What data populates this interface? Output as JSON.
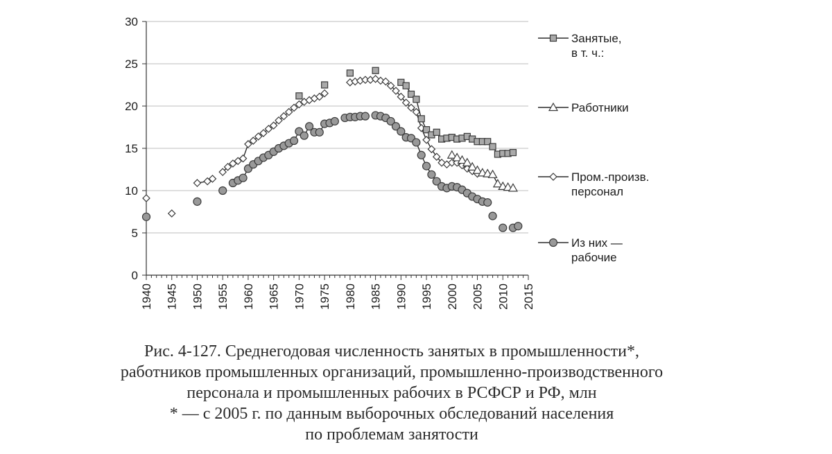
{
  "chart_data": {
    "type": "line",
    "x_range": [
      1940,
      2015
    ],
    "x_tick_step": 5,
    "ylim": [
      0,
      30
    ],
    "y_ticks": [
      0,
      5,
      10,
      15,
      20,
      25,
      30
    ],
    "x_ticks": [
      1940,
      1945,
      1950,
      1955,
      1960,
      1965,
      1970,
      1975,
      1980,
      1985,
      1990,
      1995,
      2000,
      2005,
      2010,
      2015
    ],
    "grid": "horizontal",
    "legend_position": "right",
    "series": [
      {
        "name_lines": [
          "Занятые,",
          "в т. ч.:"
        ],
        "marker": "square",
        "color": "#aaaaaa",
        "segments": [
          [
            [
              1970,
              21.2
            ]
          ],
          [
            [
              1975,
              22.5
            ]
          ],
          [
            [
              1980,
              23.9
            ]
          ],
          [
            [
              1985,
              24.2
            ]
          ],
          [
            [
              1990,
              22.8
            ],
            [
              1991,
              22.4
            ],
            [
              1992,
              21.4
            ],
            [
              1993,
              20.8
            ],
            [
              1994,
              18.5
            ],
            [
              1995,
              17.2
            ],
            [
              1996,
              16.6
            ],
            [
              1997,
              16.9
            ],
            [
              1998,
              16.1
            ],
            [
              1999,
              16.2
            ],
            [
              2000,
              16.3
            ],
            [
              2001,
              16.1
            ],
            [
              2002,
              16.2
            ],
            [
              2003,
              16.4
            ],
            [
              2004,
              16.1
            ],
            [
              2005,
              15.8
            ],
            [
              2006,
              15.8
            ],
            [
              2007,
              15.8
            ],
            [
              2008,
              15.2
            ],
            [
              2009,
              14.3
            ],
            [
              2010,
              14.4
            ],
            [
              2011,
              14.4
            ],
            [
              2012,
              14.5
            ]
          ]
        ]
      },
      {
        "name_lines": [
          "Работники"
        ],
        "marker": "triangle",
        "color": "#ffffff",
        "segments": [
          [
            [
              2000,
              14.2
            ],
            [
              2001,
              13.9
            ],
            [
              2002,
              13.6
            ],
            [
              2003,
              13.3
            ],
            [
              2004,
              12.8
            ],
            [
              2005,
              12.4
            ],
            [
              2006,
              12.1
            ],
            [
              2007,
              12.0
            ],
            [
              2008,
              11.9
            ],
            [
              2009,
              10.8
            ],
            [
              2010,
              10.5
            ],
            [
              2011,
              10.4
            ],
            [
              2012,
              10.3
            ]
          ]
        ]
      },
      {
        "name_lines": [
          "Пром.-произв.",
          "персонал"
        ],
        "marker": "diamond",
        "color": "#ffffff",
        "segments": [
          [
            [
              1940,
              9.1
            ]
          ],
          [
            [
              1945,
              7.3
            ]
          ],
          [
            [
              1950,
              10.9
            ],
            [
              1952,
              11.1
            ],
            [
              1953,
              11.4
            ]
          ],
          [
            [
              1955,
              12.2
            ],
            [
              1956,
              12.8
            ],
            [
              1957,
              13.2
            ],
            [
              1958,
              13.5
            ],
            [
              1959,
              13.8
            ],
            [
              1960,
              15.5
            ],
            [
              1961,
              15.9
            ],
            [
              1962,
              16.4
            ],
            [
              1963,
              16.8
            ],
            [
              1964,
              17.3
            ],
            [
              1965,
              17.7
            ],
            [
              1966,
              18.3
            ],
            [
              1967,
              18.8
            ],
            [
              1968,
              19.3
            ],
            [
              1969,
              19.8
            ],
            [
              1970,
              20.2
            ],
            [
              1971,
              20.5
            ],
            [
              1972,
              20.7
            ],
            [
              1973,
              20.9
            ],
            [
              1974,
              21.1
            ],
            [
              1975,
              21.5
            ]
          ],
          [
            [
              1980,
              22.8
            ],
            [
              1981,
              22.9
            ],
            [
              1982,
              23.0
            ],
            [
              1983,
              23.1
            ],
            [
              1984,
              23.1
            ],
            [
              1985,
              23.2
            ],
            [
              1986,
              23.0
            ],
            [
              1987,
              22.9
            ],
            [
              1988,
              22.4
            ],
            [
              1989,
              21.8
            ],
            [
              1990,
              21.1
            ],
            [
              1991,
              20.4
            ],
            [
              1992,
              19.8
            ],
            [
              1993,
              19.3
            ],
            [
              1994,
              17.4
            ],
            [
              1995,
              16.0
            ],
            [
              1996,
              14.9
            ],
            [
              1997,
              14.0
            ],
            [
              1998,
              13.3
            ],
            [
              1999,
              13.1
            ],
            [
              2000,
              13.3
            ],
            [
              2001,
              13.3
            ],
            [
              2002,
              13.0
            ],
            [
              2003,
              12.6
            ],
            [
              2004,
              12.3
            ],
            [
              2005,
              12.0
            ]
          ]
        ]
      },
      {
        "name_lines": [
          "Из них —",
          "рабочие"
        ],
        "marker": "circle",
        "color": "#999999",
        "segments": [
          [
            [
              1940,
              6.9
            ]
          ],
          [
            [
              1950,
              8.7
            ]
          ],
          [
            [
              1955,
              10.0
            ]
          ],
          [
            [
              1957,
              10.9
            ],
            [
              1958,
              11.2
            ],
            [
              1959,
              11.5
            ],
            [
              1960,
              12.6
            ],
            [
              1961,
              13.1
            ],
            [
              1962,
              13.5
            ],
            [
              1963,
              13.9
            ],
            [
              1964,
              14.2
            ],
            [
              1965,
              14.6
            ],
            [
              1966,
              15.0
            ],
            [
              1967,
              15.3
            ],
            [
              1968,
              15.6
            ],
            [
              1969,
              15.9
            ],
            [
              1970,
              17.0
            ],
            [
              1971,
              16.5
            ],
            [
              1972,
              17.6
            ],
            [
              1973,
              16.9
            ],
            [
              1974,
              16.9
            ],
            [
              1975,
              17.9
            ],
            [
              1976,
              18.0
            ],
            [
              1977,
              18.2
            ]
          ],
          [
            [
              1979,
              18.6
            ],
            [
              1980,
              18.7
            ],
            [
              1981,
              18.7
            ],
            [
              1982,
              18.8
            ],
            [
              1983,
              18.8
            ]
          ],
          [
            [
              1985,
              18.9
            ],
            [
              1986,
              18.8
            ],
            [
              1987,
              18.6
            ],
            [
              1988,
              18.2
            ],
            [
              1989,
              17.6
            ],
            [
              1990,
              17.0
            ],
            [
              1991,
              16.3
            ],
            [
              1992,
              16.2
            ],
            [
              1993,
              15.7
            ],
            [
              1994,
              14.2
            ],
            [
              1995,
              12.9
            ],
            [
              1996,
              11.9
            ],
            [
              1997,
              11.1
            ],
            [
              1998,
              10.5
            ],
            [
              1999,
              10.3
            ],
            [
              2000,
              10.5
            ],
            [
              2001,
              10.4
            ],
            [
              2002,
              10.1
            ],
            [
              2003,
              9.7
            ],
            [
              2004,
              9.3
            ],
            [
              2005,
              9.0
            ],
            [
              2006,
              8.7
            ],
            [
              2007,
              8.6
            ]
          ],
          [
            [
              2008,
              7.0
            ]
          ],
          [
            [
              2010,
              5.6
            ]
          ],
          [
            [
              2012,
              5.6
            ],
            [
              2013,
              5.8
            ]
          ]
        ]
      }
    ]
  },
  "caption": {
    "lines": [
      "Рис. 4-127. Среднегодовая численность занятых в промышленности*,",
      "работников промышленных организаций, промышленно-производственного",
      "персонала и промышленных рабочих в РСФСР и РФ, млн",
      "* — с 2005 г. по данным выборочных обследований населения",
      "по проблемам занятости"
    ]
  }
}
